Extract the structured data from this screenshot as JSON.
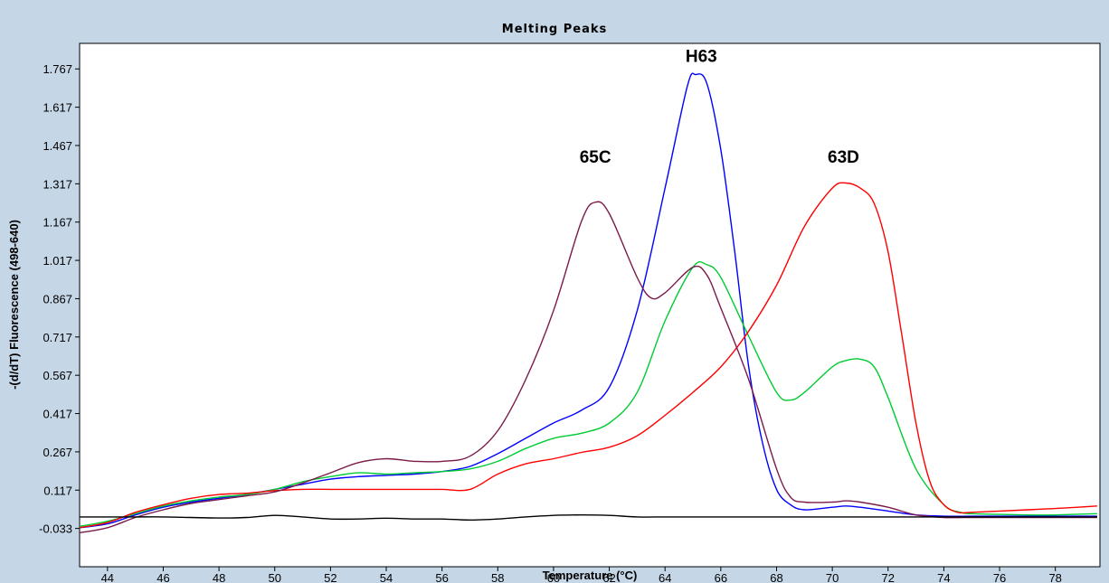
{
  "chart_data": {
    "type": "line",
    "title": "Melting Peaks",
    "xlabel": "Temperature (°C)",
    "ylabel": "-(d/dT) Fluorescence (498-640)",
    "xlim": [
      43,
      79.6
    ],
    "ylim": [
      -0.183,
      1.867
    ],
    "x_ticks": [
      44,
      46,
      48,
      50,
      52,
      54,
      56,
      58,
      60,
      62,
      64,
      66,
      68,
      70,
      72,
      74,
      76,
      78
    ],
    "x_tick_labels": [
      "44",
      "46",
      "48",
      "50",
      "52",
      "54",
      "56",
      "58",
      "60",
      "62",
      "64",
      "66",
      "68",
      "70",
      "72",
      "74",
      "76",
      "78"
    ],
    "y_ticks": [
      -0.033,
      0.117,
      0.267,
      0.417,
      0.567,
      0.717,
      0.867,
      1.017,
      1.167,
      1.317,
      1.467,
      1.617,
      1.767
    ],
    "y_tick_labels": [
      "-0.033",
      "0.117",
      "0.267",
      "0.417",
      "0.567",
      "0.717",
      "0.867",
      "1.017",
      "1.167",
      "1.317",
      "1.467",
      "1.617",
      "1.767"
    ],
    "grid": false,
    "colors": {
      "plot_background": "#ffffff",
      "frame_background": "#c5d6e6"
    },
    "annotations": [
      {
        "text": "65C",
        "x": 61.5,
        "y": 1.4
      },
      {
        "text": "H63",
        "x": 65.3,
        "y": 1.795
      },
      {
        "text": "63D",
        "x": 70.4,
        "y": 1.4
      }
    ],
    "series": [
      {
        "color": "#0000ff",
        "points": [
          [
            43,
            -0.03
          ],
          [
            44,
            -0.015
          ],
          [
            45,
            0.02
          ],
          [
            46,
            0.05
          ],
          [
            47,
            0.07
          ],
          [
            48,
            0.085
          ],
          [
            49,
            0.1
          ],
          [
            50,
            0.12
          ],
          [
            51,
            0.14
          ],
          [
            52,
            0.16
          ],
          [
            53,
            0.17
          ],
          [
            54,
            0.175
          ],
          [
            55,
            0.18
          ],
          [
            56,
            0.19
          ],
          [
            57,
            0.21
          ],
          [
            58,
            0.26
          ],
          [
            59,
            0.32
          ],
          [
            60,
            0.38
          ],
          [
            61,
            0.43
          ],
          [
            62,
            0.52
          ],
          [
            63,
            0.82
          ],
          [
            64,
            1.3
          ],
          [
            64.8,
            1.7
          ],
          [
            65.1,
            1.745
          ],
          [
            65.5,
            1.71
          ],
          [
            66,
            1.45
          ],
          [
            66.5,
            1.05
          ],
          [
            67,
            0.6
          ],
          [
            67.5,
            0.3
          ],
          [
            68,
            0.12
          ],
          [
            68.5,
            0.06
          ],
          [
            69,
            0.04
          ],
          [
            70,
            0.05
          ],
          [
            70.5,
            0.055
          ],
          [
            71,
            0.05
          ],
          [
            72,
            0.035
          ],
          [
            73,
            0.02
          ],
          [
            74,
            0.015
          ],
          [
            75,
            0.015
          ],
          [
            76,
            0.015
          ],
          [
            77,
            0.015
          ],
          [
            78,
            0.015
          ],
          [
            79.5,
            0.015
          ]
        ]
      },
      {
        "color": "#00cc33",
        "points": [
          [
            43,
            -0.025
          ],
          [
            44,
            -0.005
          ],
          [
            45,
            0.025
          ],
          [
            46,
            0.055
          ],
          [
            47,
            0.075
          ],
          [
            48,
            0.09
          ],
          [
            49,
            0.1
          ],
          [
            50,
            0.12
          ],
          [
            51,
            0.15
          ],
          [
            52,
            0.17
          ],
          [
            53,
            0.185
          ],
          [
            54,
            0.18
          ],
          [
            55,
            0.185
          ],
          [
            56,
            0.19
          ],
          [
            57,
            0.2
          ],
          [
            58,
            0.23
          ],
          [
            59,
            0.28
          ],
          [
            60,
            0.32
          ],
          [
            61,
            0.34
          ],
          [
            62,
            0.38
          ],
          [
            63,
            0.5
          ],
          [
            64,
            0.78
          ],
          [
            65,
            0.99
          ],
          [
            65.5,
            1.0
          ],
          [
            66,
            0.95
          ],
          [
            67,
            0.72
          ],
          [
            68,
            0.5
          ],
          [
            68.5,
            0.47
          ],
          [
            69,
            0.5
          ],
          [
            70,
            0.6
          ],
          [
            70.5,
            0.625
          ],
          [
            71,
            0.63
          ],
          [
            71.5,
            0.6
          ],
          [
            72,
            0.48
          ],
          [
            73,
            0.2
          ],
          [
            74,
            0.06
          ],
          [
            74.6,
            0.03
          ],
          [
            75,
            0.025
          ],
          [
            76,
            0.022
          ],
          [
            77,
            0.02
          ],
          [
            78,
            0.02
          ],
          [
            79.5,
            0.025
          ]
        ]
      },
      {
        "color": "#ff0000",
        "points": [
          [
            43,
            -0.03
          ],
          [
            44,
            -0.01
          ],
          [
            45,
            0.03
          ],
          [
            46,
            0.06
          ],
          [
            47,
            0.085
          ],
          [
            48,
            0.1
          ],
          [
            49,
            0.105
          ],
          [
            50,
            0.115
          ],
          [
            51,
            0.12
          ],
          [
            52,
            0.12
          ],
          [
            53,
            0.12
          ],
          [
            54,
            0.12
          ],
          [
            55,
            0.12
          ],
          [
            56,
            0.12
          ],
          [
            57,
            0.12
          ],
          [
            58,
            0.18
          ],
          [
            59,
            0.22
          ],
          [
            60,
            0.24
          ],
          [
            61,
            0.265
          ],
          [
            62,
            0.285
          ],
          [
            63,
            0.33
          ],
          [
            64,
            0.41
          ],
          [
            65,
            0.5
          ],
          [
            66,
            0.6
          ],
          [
            67,
            0.74
          ],
          [
            68,
            0.92
          ],
          [
            69,
            1.15
          ],
          [
            70,
            1.3
          ],
          [
            70.5,
            1.32
          ],
          [
            71,
            1.3
          ],
          [
            71.5,
            1.24
          ],
          [
            72,
            1.05
          ],
          [
            72.5,
            0.72
          ],
          [
            73,
            0.38
          ],
          [
            73.5,
            0.15
          ],
          [
            74,
            0.06
          ],
          [
            74.5,
            0.03
          ],
          [
            75,
            0.03
          ],
          [
            76,
            0.035
          ],
          [
            77,
            0.04
          ],
          [
            78,
            0.045
          ],
          [
            79.5,
            0.055
          ]
        ]
      },
      {
        "color": "#7a1a4a",
        "points": [
          [
            43,
            -0.05
          ],
          [
            44,
            -0.03
          ],
          [
            45,
            0.01
          ],
          [
            46,
            0.04
          ],
          [
            47,
            0.065
          ],
          [
            48,
            0.08
          ],
          [
            49,
            0.095
          ],
          [
            50,
            0.11
          ],
          [
            51,
            0.145
          ],
          [
            52,
            0.185
          ],
          [
            53,
            0.225
          ],
          [
            54,
            0.24
          ],
          [
            55,
            0.23
          ],
          [
            56,
            0.23
          ],
          [
            57,
            0.25
          ],
          [
            58,
            0.35
          ],
          [
            59,
            0.55
          ],
          [
            60,
            0.82
          ],
          [
            61,
            1.17
          ],
          [
            61.5,
            1.245
          ],
          [
            62,
            1.2
          ],
          [
            63,
            0.95
          ],
          [
            63.5,
            0.87
          ],
          [
            64,
            0.89
          ],
          [
            65,
            0.99
          ],
          [
            65.5,
            0.96
          ],
          [
            66,
            0.83
          ],
          [
            67,
            0.55
          ],
          [
            68,
            0.2
          ],
          [
            68.5,
            0.09
          ],
          [
            69,
            0.07
          ],
          [
            70,
            0.07
          ],
          [
            70.5,
            0.075
          ],
          [
            71,
            0.07
          ],
          [
            72,
            0.05
          ],
          [
            73,
            0.02
          ],
          [
            74,
            0.01
          ],
          [
            75,
            0.01
          ],
          [
            76,
            0.01
          ],
          [
            77,
            0.01
          ],
          [
            78,
            0.01
          ],
          [
            79.5,
            0.01
          ]
        ]
      },
      {
        "color": "#000000",
        "points": [
          [
            43,
            0.012
          ],
          [
            44,
            0.012
          ],
          [
            45,
            0.012
          ],
          [
            46,
            0.012
          ],
          [
            47,
            0.01
          ],
          [
            48,
            0.008
          ],
          [
            49,
            0.01
          ],
          [
            50,
            0.018
          ],
          [
            51,
            0.012
          ],
          [
            52,
            0.004
          ],
          [
            53,
            0.004
          ],
          [
            54,
            0.007
          ],
          [
            55,
            0.004
          ],
          [
            56,
            0.004
          ],
          [
            57,
            0.0
          ],
          [
            58,
            0.004
          ],
          [
            59,
            0.012
          ],
          [
            60,
            0.018
          ],
          [
            61,
            0.02
          ],
          [
            62,
            0.018
          ],
          [
            63,
            0.012
          ],
          [
            64,
            0.012
          ],
          [
            65,
            0.012
          ],
          [
            66,
            0.012
          ],
          [
            67,
            0.012
          ],
          [
            68,
            0.012
          ],
          [
            69,
            0.012
          ],
          [
            70,
            0.012
          ],
          [
            71,
            0.012
          ],
          [
            72,
            0.012
          ],
          [
            73,
            0.012
          ],
          [
            74,
            0.012
          ],
          [
            75,
            0.012
          ],
          [
            76,
            0.012
          ],
          [
            77,
            0.012
          ],
          [
            78,
            0.012
          ],
          [
            79.5,
            0.012
          ]
        ]
      }
    ]
  }
}
